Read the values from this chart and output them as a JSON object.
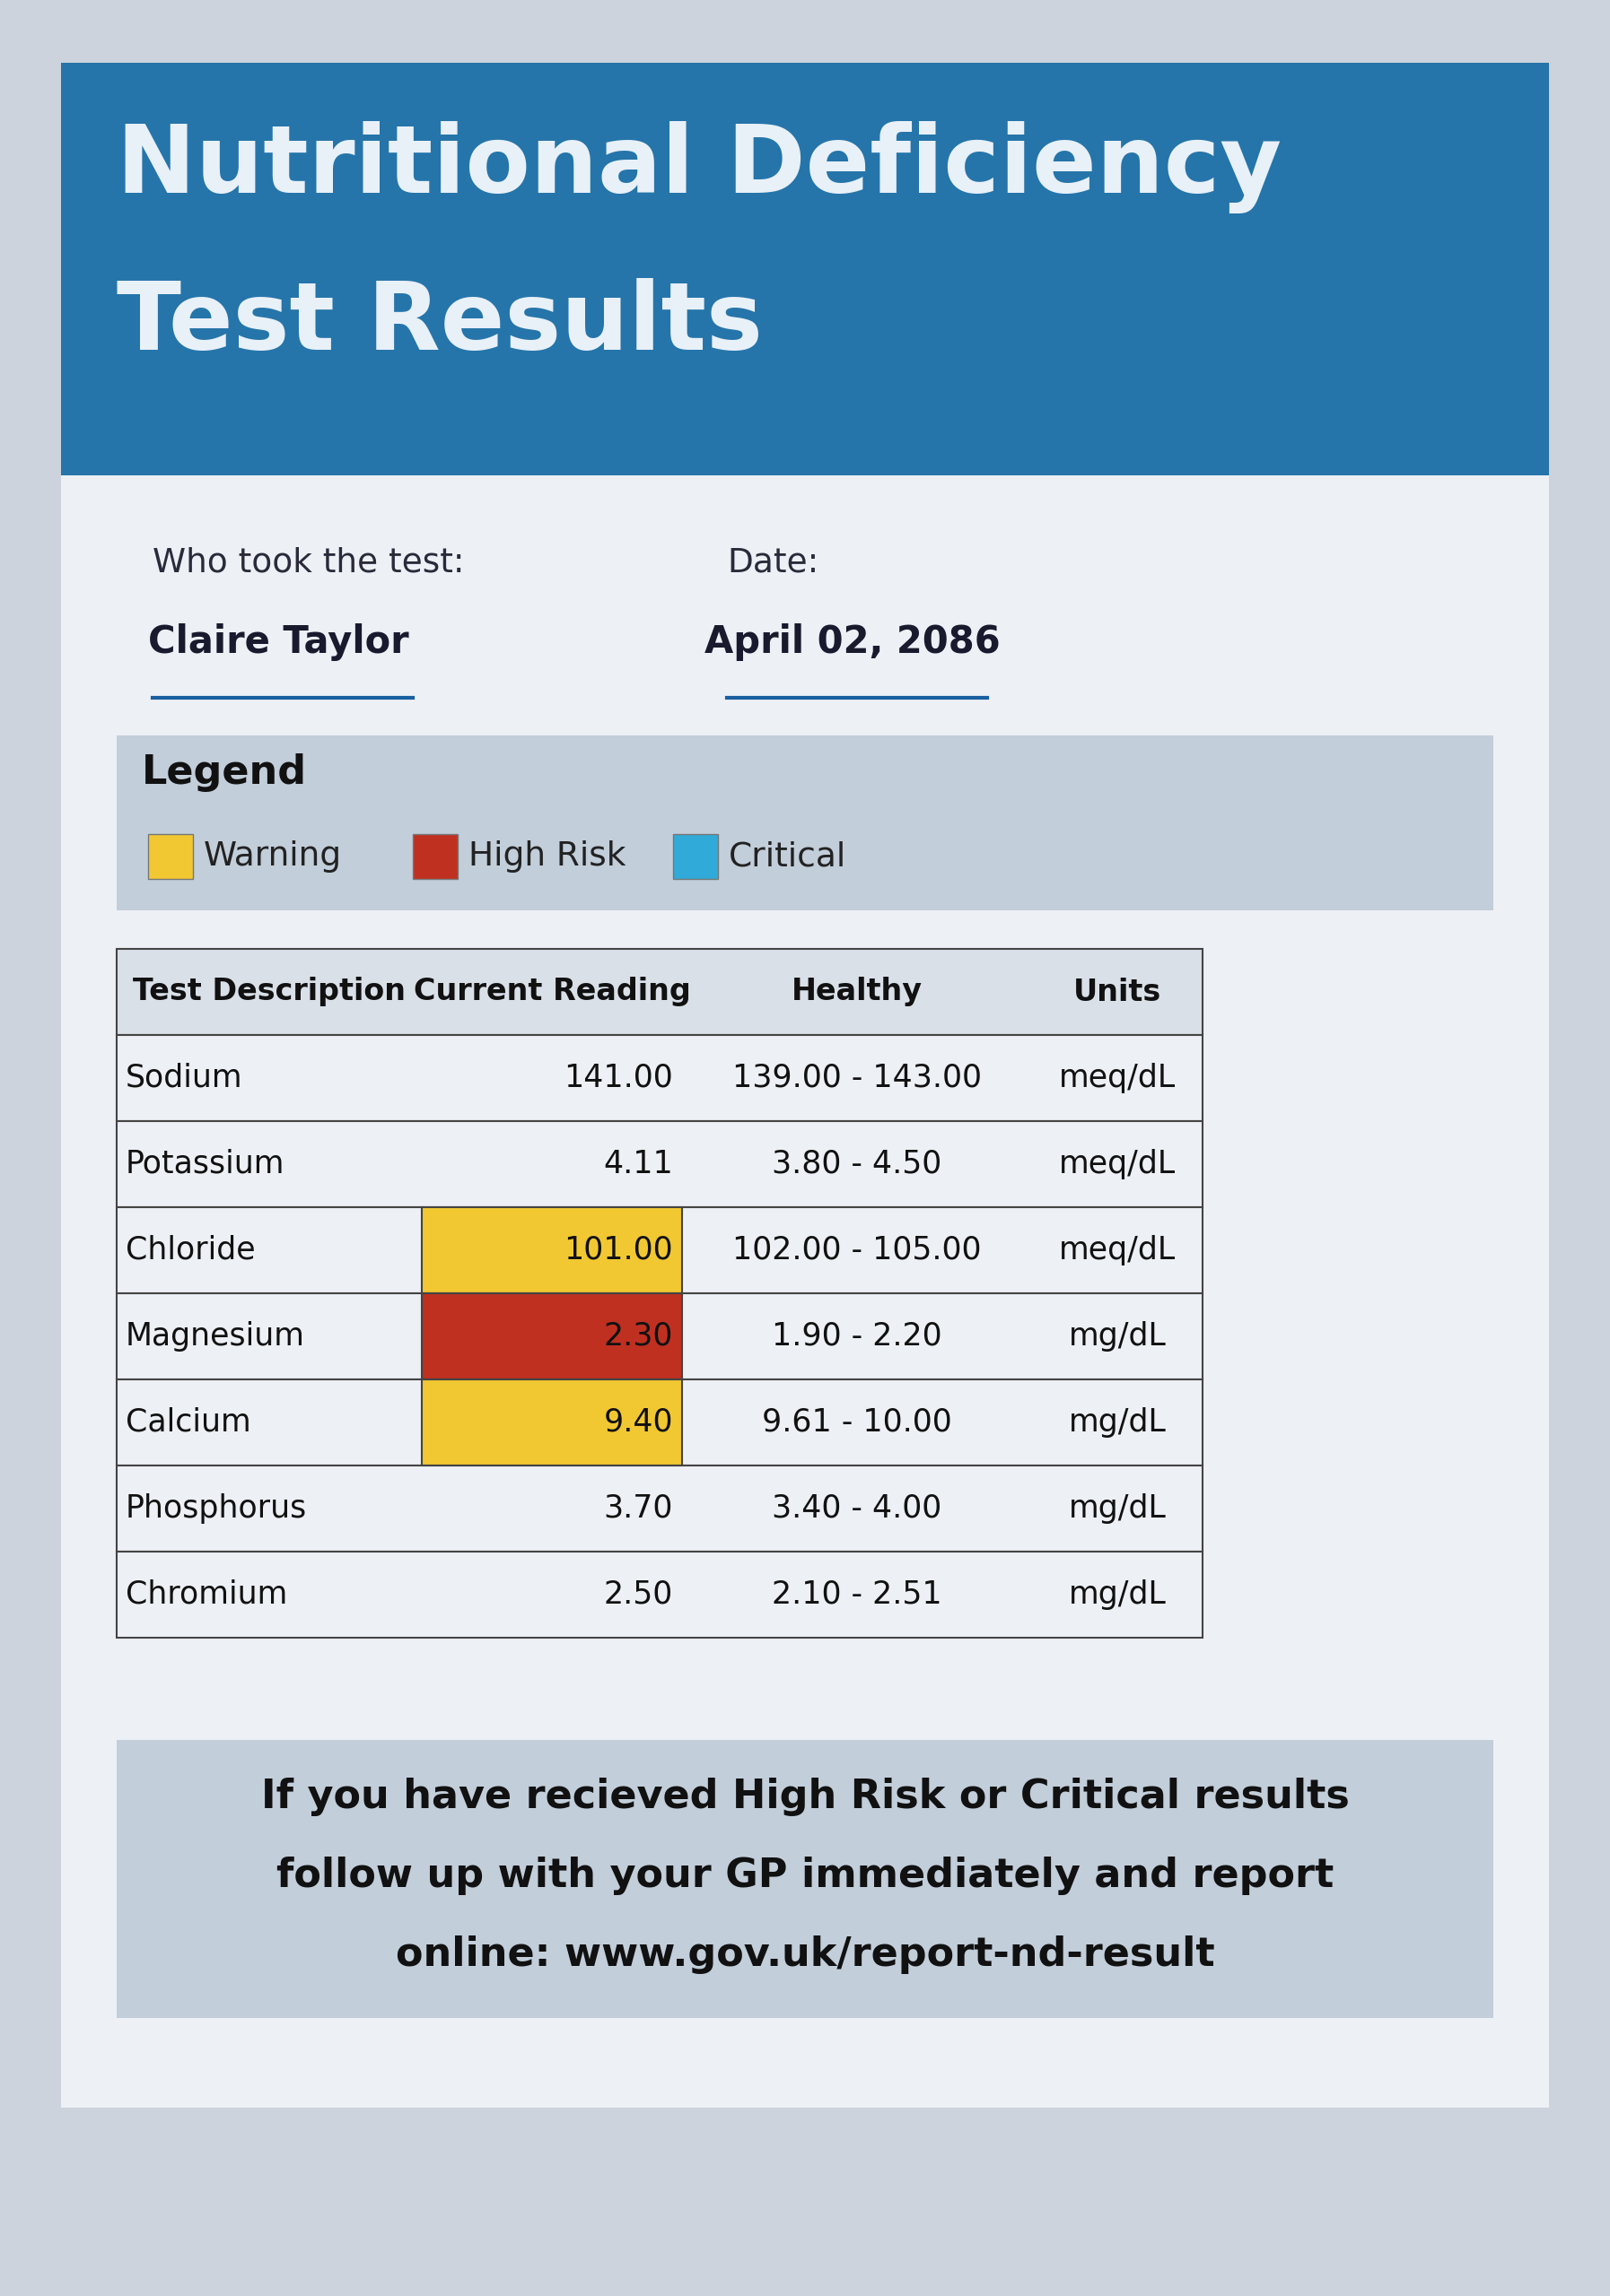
{
  "title_line1": "Nutritional Deficiency",
  "title_line2": "Test Results",
  "header_bg": "#2575aa",
  "header_text_color": "#e8f0f8",
  "page_bg": "#cdd3dc",
  "card_bg": "#edf0f5",
  "name_label": "Who took the test:",
  "name_value": "Claire Taylor",
  "date_label": "Date:",
  "date_value": "April 02, 2086",
  "legend_title": "Legend",
  "legend_bg": "#c2ceda",
  "legend_items": [
    {
      "label": "Warning",
      "color": "#f2c832"
    },
    {
      "label": "High Risk",
      "color": "#c03020"
    },
    {
      "label": "Critical",
      "color": "#30aad8"
    }
  ],
  "table_headers": [
    "Test Description",
    "Current Reading",
    "Healthy",
    "Units"
  ],
  "table_rows": [
    {
      "test": "Sodium",
      "reading": "141.00",
      "healthy": "139.00 - 143.00",
      "units": "meq/dL",
      "bg": null
    },
    {
      "test": "Potassium",
      "reading": "4.11",
      "healthy": "3.80 - 4.50",
      "units": "meq/dL",
      "bg": null
    },
    {
      "test": "Chloride",
      "reading": "101.00",
      "healthy": "102.00 - 105.00",
      "units": "meq/dL",
      "bg": "#f2c832"
    },
    {
      "test": "Magnesium",
      "reading": "2.30",
      "healthy": "1.90 - 2.20",
      "units": "mg/dL",
      "bg": "#c03020"
    },
    {
      "test": "Calcium",
      "reading": "9.40",
      "healthy": "9.61 - 10.00",
      "units": "mg/dL",
      "bg": "#f2c832"
    },
    {
      "test": "Phosphorus",
      "reading": "3.70",
      "healthy": "3.40 - 4.00",
      "units": "mg/dL",
      "bg": null
    },
    {
      "test": "Chromium",
      "reading": "2.50",
      "healthy": "2.10 - 2.51",
      "units": "mg/dL",
      "bg": null
    }
  ],
  "footer_bg": "#c2ceda",
  "footer_line1": "If you have recieved High Risk or Critical results",
  "footer_line2": "follow up with your GP immediately and report",
  "footer_line3": "online: www.gov.uk/report-nd-result"
}
